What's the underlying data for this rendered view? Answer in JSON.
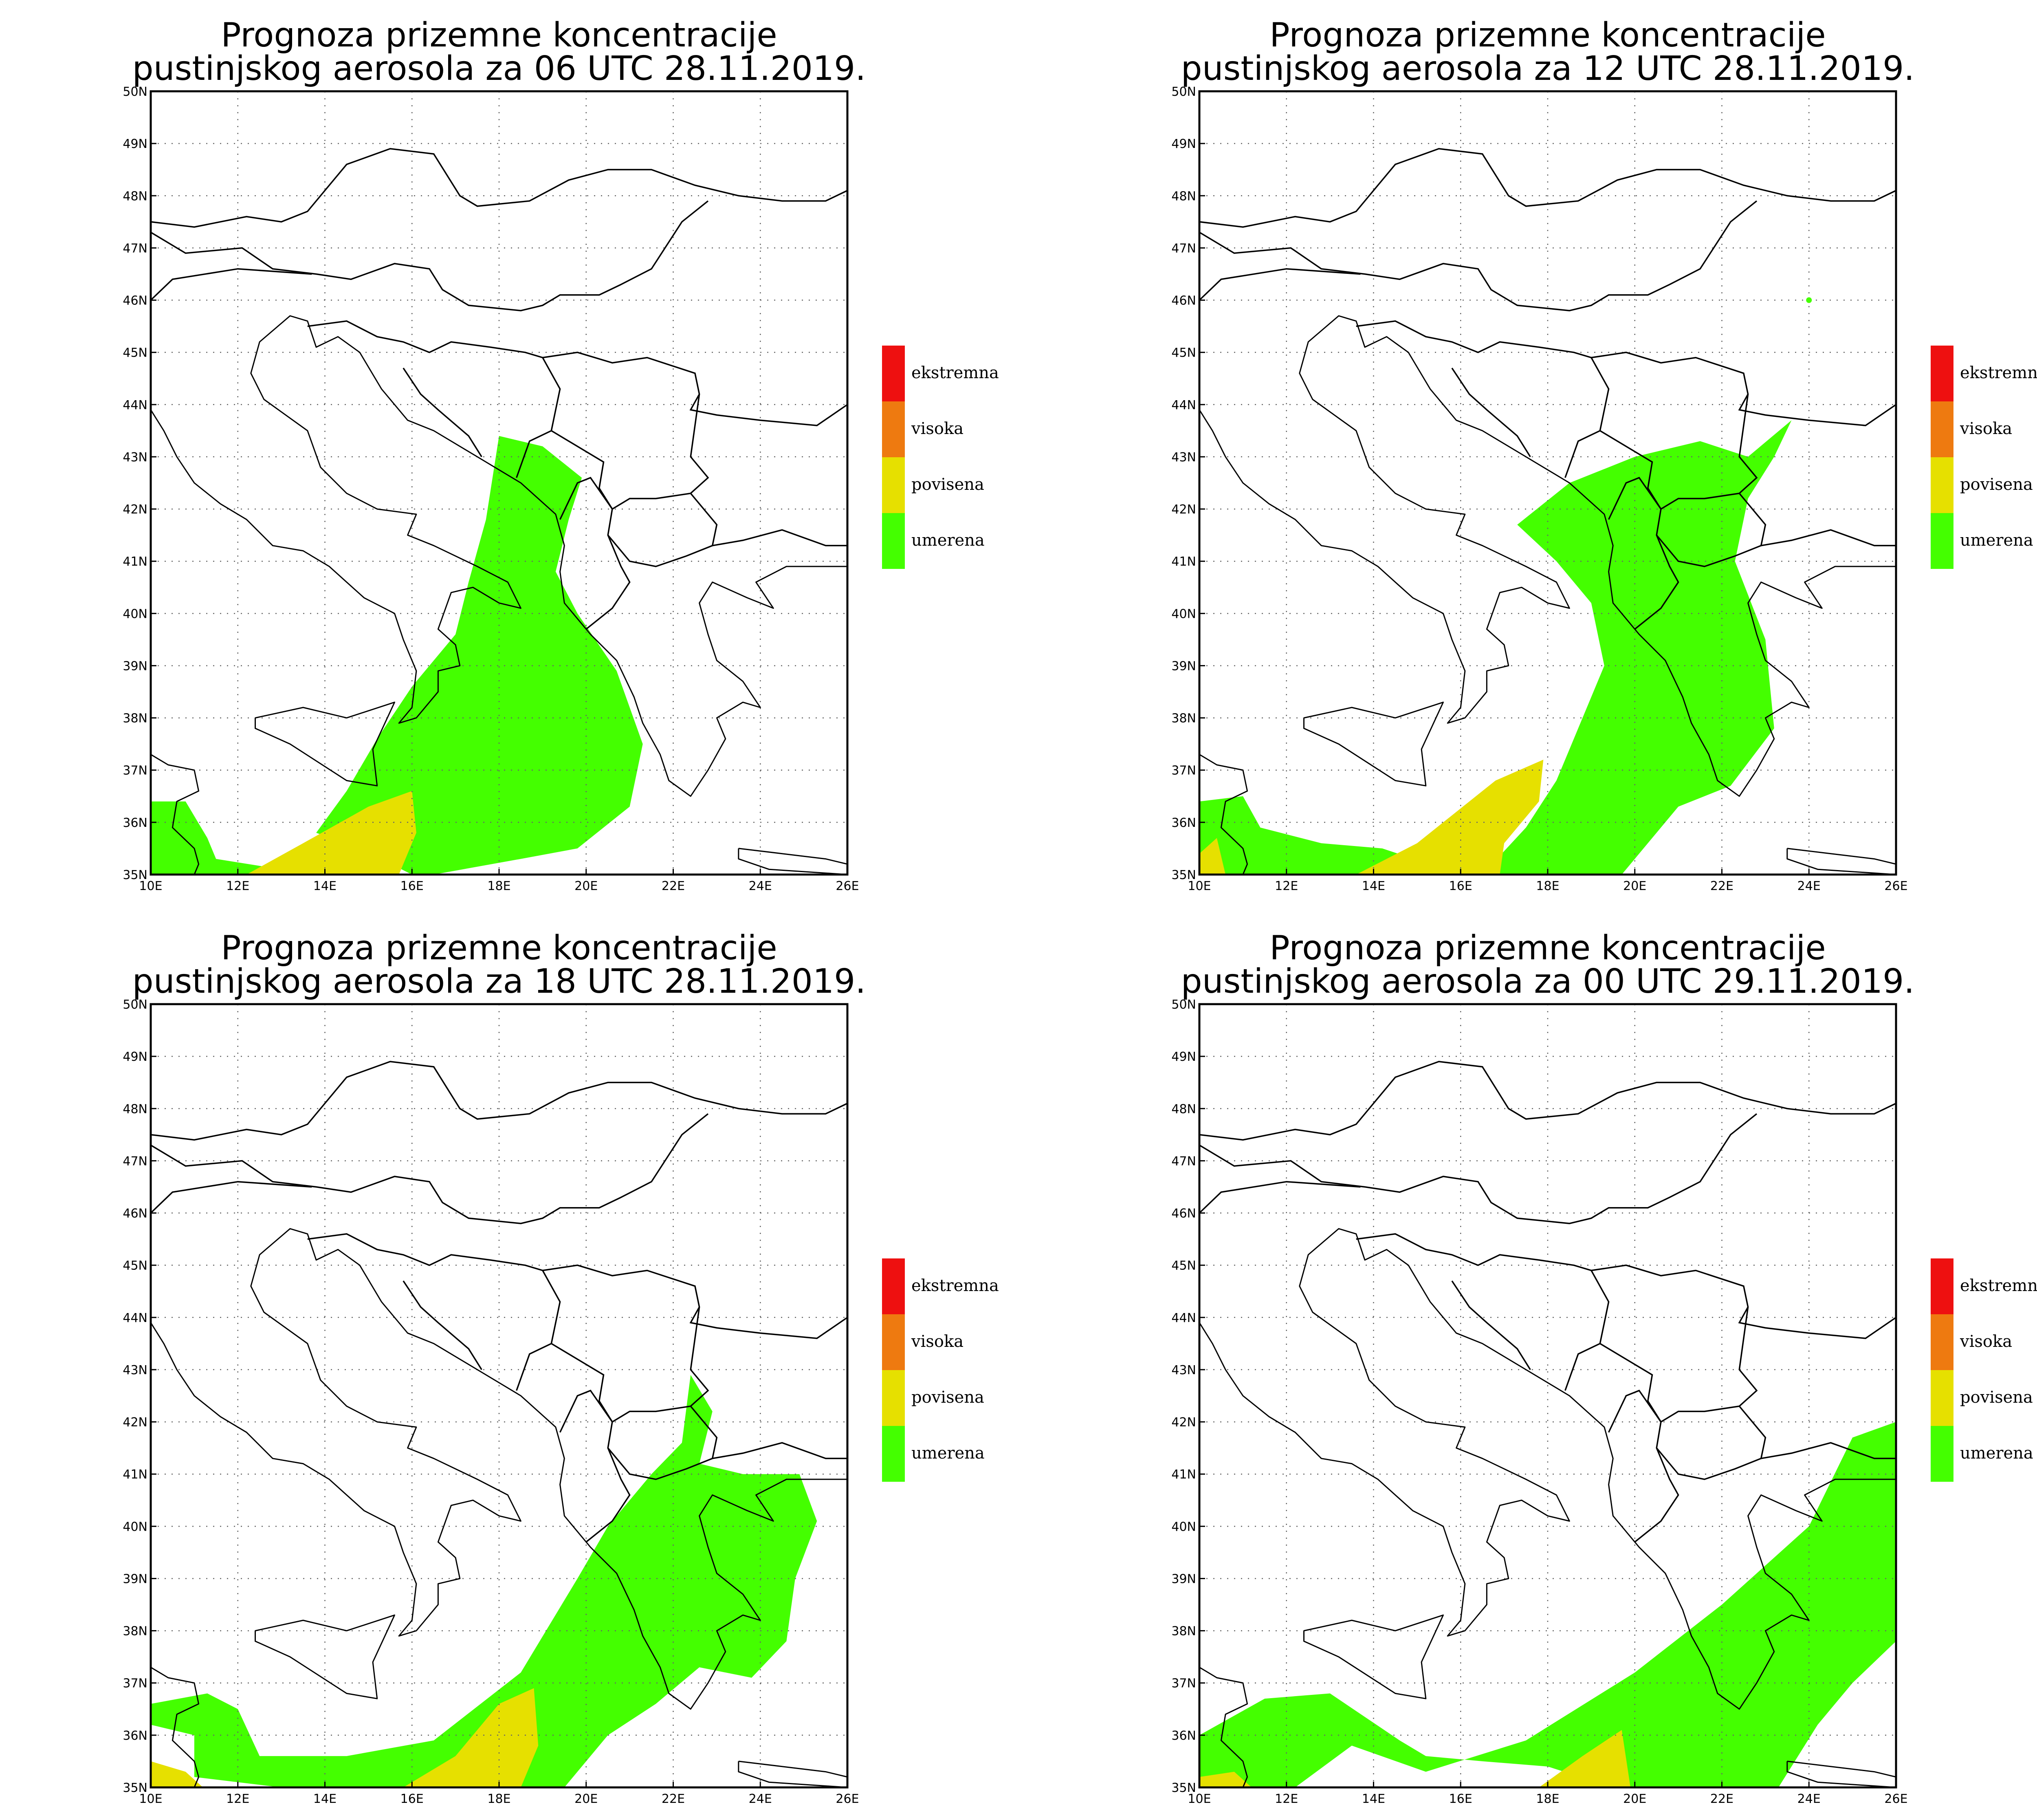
{
  "colors": {
    "ekstremna": "#ee1010",
    "visoka": "#ee7a10",
    "povisena": "#e6e000",
    "umerena": "#44ff00"
  },
  "axes": {
    "lon_labels": [
      "10E",
      "12E",
      "14E",
      "16E",
      "18E",
      "20E",
      "22E",
      "24E",
      "26E"
    ],
    "lat_labels": [
      "35N",
      "36N",
      "37N",
      "38N",
      "39N",
      "40N",
      "41N",
      "42N",
      "43N",
      "44N",
      "45N",
      "46N",
      "47N",
      "48N",
      "49N",
      "50N"
    ],
    "lon_range": [
      10,
      26
    ],
    "lat_range": [
      35,
      50
    ]
  },
  "legend": [
    {
      "key": "ekstremna",
      "label": "ekstremna"
    },
    {
      "key": "visoka",
      "label": "visoka"
    },
    {
      "key": "povisena",
      "label": "povisena"
    },
    {
      "key": "umerena",
      "label": "umerena"
    }
  ],
  "panels": [
    {
      "title_line1": "Prognoza prizemne koncentracije",
      "title_line2": "pustinjskog aerosola za 06 UTC 28.11.2019."
    },
    {
      "title_line1": "Prognoza prizemne koncentracije",
      "title_line2": "pustinjskog aerosola za 12 UTC 28.11.2019."
    },
    {
      "title_line1": "Prognoza prizemne koncentracije",
      "title_line2": "pustinjskog aerosola za 18 UTC 28.11.2019."
    },
    {
      "title_line1": "Prognoza prizemne koncentracije",
      "title_line2": "pustinjskog aerosola za 00 UTC 29.11.2019."
    }
  ],
  "map_shapes": {
    "umerena": [
      [
        [
          18,
          43.4
        ],
        [
          19,
          43.2
        ],
        [
          19.9,
          42.6
        ],
        [
          19.6,
          41.8
        ],
        [
          19.3,
          40.8
        ],
        [
          19.8,
          40.0
        ],
        [
          20.7,
          38.9
        ],
        [
          21.3,
          37.5
        ],
        [
          21.0,
          36.3
        ],
        [
          19.8,
          35.5
        ],
        [
          18.5,
          35.3
        ],
        [
          16.5,
          35.0
        ],
        [
          15.0,
          35.0
        ],
        [
          13.0,
          35.1
        ],
        [
          11.5,
          35.3
        ],
        [
          11.3,
          35.7
        ],
        [
          10.8,
          36.4
        ],
        [
          10.0,
          36.4
        ],
        [
          10.0,
          35.0
        ],
        [
          16.0,
          35.0
        ],
        [
          14.8,
          35.5
        ],
        [
          13.8,
          35.8
        ],
        [
          14.5,
          36.6
        ],
        [
          15.2,
          37.6
        ],
        [
          16.0,
          38.6
        ],
        [
          17.0,
          39.6
        ],
        [
          17.3,
          40.6
        ],
        [
          17.7,
          41.8
        ]
      ],
      [
        [
          17.3,
          41.7
        ],
        [
          18.5,
          42.5
        ],
        [
          20.0,
          43.0
        ],
        [
          21.5,
          43.3
        ],
        [
          22.6,
          43.0
        ],
        [
          23.6,
          43.7
        ],
        [
          23.2,
          43.0
        ],
        [
          22.6,
          42.2
        ],
        [
          22.3,
          41.0
        ],
        [
          23.0,
          39.5
        ],
        [
          23.2,
          37.8
        ],
        [
          22.2,
          36.7
        ],
        [
          21.0,
          36.3
        ],
        [
          19.7,
          35.0
        ],
        [
          16.0,
          35.0
        ],
        [
          14.2,
          35.5
        ],
        [
          12.8,
          35.6
        ],
        [
          11.4,
          35.9
        ],
        [
          11.0,
          36.5
        ],
        [
          10.0,
          36.4
        ],
        [
          10.0,
          35.0
        ],
        [
          16.5,
          35.0
        ],
        [
          17.5,
          35.9
        ],
        [
          18.2,
          36.8
        ],
        [
          18.8,
          38.0
        ],
        [
          19.3,
          39.0
        ],
        [
          19.0,
          40.2
        ],
        [
          18.2,
          41.0
        ]
      ],
      [
        [
          22.4,
          42.9
        ],
        [
          22.9,
          42.2
        ],
        [
          22.6,
          41.2
        ],
        [
          23.6,
          41.0
        ],
        [
          24.9,
          41.0
        ],
        [
          25.3,
          40.1
        ],
        [
          24.8,
          39.0
        ],
        [
          24.6,
          37.8
        ],
        [
          23.8,
          37.1
        ],
        [
          22.6,
          37.3
        ],
        [
          21.6,
          36.6
        ],
        [
          20.5,
          36.0
        ],
        [
          19.5,
          35.0
        ],
        [
          13.0,
          35.0
        ],
        [
          11.0,
          35.2
        ],
        [
          11.0,
          36.0
        ],
        [
          10.0,
          36.2
        ],
        [
          10.0,
          36.6
        ],
        [
          11.3,
          36.8
        ],
        [
          12.0,
          36.5
        ],
        [
          12.5,
          35.6
        ],
        [
          14.5,
          35.6
        ],
        [
          16.5,
          35.9
        ],
        [
          18.5,
          37.2
        ],
        [
          19.8,
          39.0
        ],
        [
          20.5,
          40.0
        ],
        [
          21.5,
          41.0
        ],
        [
          22.2,
          41.6
        ]
      ],
      [
        [
          26.0,
          42.0
        ],
        [
          26.0,
          37.8
        ],
        [
          25.0,
          37.0
        ],
        [
          24.2,
          36.2
        ],
        [
          23.3,
          35.0
        ],
        [
          19.5,
          35.0
        ],
        [
          18.0,
          35.4
        ],
        [
          16.5,
          35.5
        ],
        [
          15.2,
          35.6
        ],
        [
          14.6,
          35.9
        ],
        [
          13.0,
          36.8
        ],
        [
          11.5,
          36.7
        ],
        [
          10.0,
          36.0
        ],
        [
          10.0,
          35.0
        ],
        [
          12.2,
          35.0
        ],
        [
          13.5,
          35.8
        ],
        [
          15.2,
          35.3
        ],
        [
          17.5,
          35.9
        ],
        [
          20.0,
          37.2
        ],
        [
          22.0,
          38.5
        ],
        [
          24.0,
          40.0
        ],
        [
          25.0,
          41.7
        ]
      ]
    ],
    "povisena": [
      [
        [
          12.2,
          35.0
        ],
        [
          13.5,
          35.6
        ],
        [
          15.0,
          36.3
        ],
        [
          16.0,
          36.6
        ],
        [
          16.1,
          35.8
        ],
        [
          15.7,
          35.0
        ]
      ],
      [
        [
          13.6,
          35.0
        ],
        [
          15.0,
          35.6
        ],
        [
          16.8,
          36.8
        ],
        [
          17.9,
          37.2
        ],
        [
          17.8,
          36.4
        ],
        [
          17.0,
          35.6
        ],
        [
          16.9,
          35.0
        ]
      ],
      [
        [
          10.0,
          35.0
        ],
        [
          10.0,
          35.5
        ],
        [
          10.8,
          35.3
        ],
        [
          11.2,
          35.0
        ]
      ],
      [
        [
          10.0,
          35.0
        ],
        [
          10.0,
          35.2
        ],
        [
          10.8,
          35.3
        ],
        [
          11.2,
          35.0
        ]
      ]
    ],
    "povisena_extra": [
      [],
      [
        [
          10.0,
          35.0
        ],
        [
          10.0,
          35.4
        ],
        [
          10.4,
          35.7
        ],
        [
          10.6,
          35.0
        ]
      ],
      [
        [
          15.8,
          35.0
        ],
        [
          17.0,
          35.6
        ],
        [
          18.0,
          36.6
        ],
        [
          18.8,
          36.9
        ],
        [
          18.9,
          35.8
        ],
        [
          18.5,
          35.0
        ]
      ],
      [
        [
          17.8,
          35.0
        ],
        [
          18.8,
          35.6
        ],
        [
          19.7,
          36.1
        ],
        [
          19.9,
          35.0
        ]
      ]
    ],
    "coastline": [
      [
        [
          10.0,
          43.9
        ],
        [
          10.3,
          43.5
        ],
        [
          10.6,
          43.0
        ],
        [
          11.0,
          42.5
        ],
        [
          11.6,
          42.1
        ],
        [
          12.2,
          41.8
        ],
        [
          12.8,
          41.3
        ],
        [
          13.5,
          41.2
        ],
        [
          14.1,
          40.9
        ],
        [
          14.5,
          40.6
        ],
        [
          14.9,
          40.3
        ],
        [
          15.6,
          40.0
        ],
        [
          15.8,
          39.5
        ],
        [
          16.1,
          38.9
        ],
        [
          16.0,
          38.2
        ],
        [
          15.7,
          37.9
        ],
        [
          16.1,
          38.0
        ],
        [
          16.6,
          38.5
        ],
        [
          16.6,
          38.9
        ],
        [
          17.1,
          39.0
        ],
        [
          17.0,
          39.4
        ],
        [
          16.6,
          39.7
        ],
        [
          16.9,
          40.4
        ],
        [
          17.4,
          40.5
        ],
        [
          18.0,
          40.2
        ],
        [
          18.5,
          40.1
        ],
        [
          18.2,
          40.6
        ],
        [
          17.5,
          40.9
        ],
        [
          16.5,
          41.3
        ],
        [
          15.9,
          41.5
        ],
        [
          16.1,
          41.9
        ],
        [
          15.2,
          42.0
        ],
        [
          14.5,
          42.3
        ],
        [
          13.9,
          42.8
        ],
        [
          13.6,
          43.5
        ],
        [
          12.6,
          44.1
        ],
        [
          12.3,
          44.6
        ],
        [
          12.5,
          45.2
        ],
        [
          13.2,
          45.7
        ],
        [
          13.6,
          45.6
        ],
        [
          13.8,
          45.1
        ],
        [
          14.3,
          45.3
        ],
        [
          14.8,
          45.0
        ],
        [
          15.3,
          44.3
        ],
        [
          15.9,
          43.7
        ],
        [
          16.5,
          43.5
        ],
        [
          17.5,
          43.0
        ],
        [
          18.5,
          42.5
        ],
        [
          19.3,
          41.9
        ],
        [
          19.5,
          41.3
        ],
        [
          19.4,
          40.8
        ],
        [
          19.5,
          40.2
        ],
        [
          20.1,
          39.6
        ],
        [
          20.7,
          39.1
        ],
        [
          21.1,
          38.4
        ],
        [
          21.3,
          37.9
        ],
        [
          21.7,
          37.3
        ],
        [
          21.9,
          36.8
        ],
        [
          22.4,
          36.5
        ],
        [
          22.8,
          37.0
        ],
        [
          23.2,
          37.6
        ],
        [
          23.0,
          38.0
        ],
        [
          23.6,
          38.3
        ],
        [
          24.0,
          38.2
        ],
        [
          23.6,
          38.7
        ],
        [
          23.0,
          39.1
        ],
        [
          22.8,
          39.6
        ],
        [
          22.6,
          40.2
        ],
        [
          22.9,
          40.6
        ],
        [
          23.7,
          40.3
        ],
        [
          24.3,
          40.1
        ],
        [
          23.9,
          40.6
        ],
        [
          24.6,
          40.9
        ],
        [
          25.6,
          40.9
        ],
        [
          26.0,
          40.9
        ]
      ],
      [
        [
          12.4,
          38.0
        ],
        [
          13.5,
          38.2
        ],
        [
          14.5,
          38.0
        ],
        [
          15.6,
          38.3
        ],
        [
          15.1,
          37.4
        ],
        [
          15.2,
          36.7
        ],
        [
          14.5,
          36.8
        ],
        [
          13.2,
          37.5
        ],
        [
          12.4,
          37.8
        ],
        [
          12.4,
          38.0
        ]
      ],
      [
        [
          23.5,
          35.5
        ],
        [
          24.5,
          35.4
        ],
        [
          25.5,
          35.3
        ],
        [
          26.0,
          35.2
        ],
        [
          26.0,
          35.0
        ],
        [
          24.2,
          35.1
        ],
        [
          23.5,
          35.3
        ],
        [
          23.5,
          35.5
        ]
      ],
      [
        [
          10.0,
          37.3
        ],
        [
          10.4,
          37.1
        ],
        [
          11.0,
          37.0
        ],
        [
          11.1,
          36.6
        ],
        [
          10.6,
          36.4
        ],
        [
          10.5,
          35.9
        ],
        [
          11.0,
          35.5
        ],
        [
          11.1,
          35.2
        ],
        [
          11.0,
          35.0
        ]
      ]
    ],
    "borders": [
      [
        [
          10.0,
          47.5
        ],
        [
          11.0,
          47.4
        ],
        [
          12.2,
          47.6
        ],
        [
          13.0,
          47.5
        ],
        [
          13.6,
          47.7
        ],
        [
          14.5,
          48.6
        ],
        [
          15.5,
          48.9
        ],
        [
          16.5,
          48.8
        ],
        [
          17.1,
          48.0
        ],
        [
          17.5,
          47.8
        ],
        [
          18.7,
          47.9
        ],
        [
          19.6,
          48.3
        ],
        [
          20.5,
          48.5
        ],
        [
          21.5,
          48.5
        ],
        [
          22.5,
          48.2
        ],
        [
          23.5,
          48.0
        ],
        [
          24.5,
          47.9
        ],
        [
          25.5,
          47.9
        ],
        [
          26.0,
          48.1
        ]
      ],
      [
        [
          10.0,
          47.3
        ],
        [
          10.8,
          46.9
        ],
        [
          12.1,
          47.0
        ],
        [
          12.8,
          46.6
        ],
        [
          13.8,
          46.5
        ],
        [
          14.6,
          46.4
        ],
        [
          15.6,
          46.7
        ],
        [
          16.4,
          46.6
        ],
        [
          16.7,
          46.2
        ],
        [
          17.3,
          45.9
        ],
        [
          18.5,
          45.8
        ],
        [
          19.0,
          45.9
        ],
        [
          19.4,
          46.1
        ],
        [
          20.3,
          46.1
        ],
        [
          20.8,
          46.3
        ],
        [
          21.5,
          46.6
        ],
        [
          22.2,
          47.5
        ],
        [
          22.8,
          47.9
        ]
      ],
      [
        [
          13.6,
          45.5
        ],
        [
          14.5,
          45.6
        ],
        [
          15.2,
          45.3
        ],
        [
          15.8,
          45.2
        ],
        [
          16.4,
          45.0
        ],
        [
          16.9,
          45.2
        ],
        [
          17.8,
          45.1
        ],
        [
          18.6,
          45.0
        ],
        [
          19.0,
          44.9
        ],
        [
          19.4,
          44.3
        ],
        [
          19.2,
          43.5
        ],
        [
          18.7,
          43.3
        ],
        [
          18.4,
          42.6
        ]
      ],
      [
        [
          15.8,
          44.7
        ],
        [
          16.2,
          44.2
        ],
        [
          16.6,
          43.9
        ],
        [
          17.3,
          43.4
        ],
        [
          17.6,
          43.0
        ]
      ],
      [
        [
          19.0,
          44.9
        ],
        [
          19.8,
          45.0
        ],
        [
          20.6,
          44.8
        ],
        [
          21.4,
          44.9
        ],
        [
          22.5,
          44.6
        ],
        [
          22.6,
          44.2
        ],
        [
          22.4,
          43.9
        ],
        [
          23.0,
          43.8
        ],
        [
          24.0,
          43.7
        ],
        [
          25.3,
          43.6
        ],
        [
          26.0,
          44.0
        ]
      ],
      [
        [
          19.2,
          43.5
        ],
        [
          20.0,
          43.1
        ],
        [
          20.4,
          42.9
        ],
        [
          20.3,
          42.4
        ],
        [
          20.6,
          42.0
        ],
        [
          21.0,
          42.2
        ],
        [
          21.6,
          42.2
        ],
        [
          22.4,
          42.3
        ],
        [
          22.8,
          42.6
        ],
        [
          22.4,
          43.0
        ],
        [
          22.6,
          44.2
        ]
      ],
      [
        [
          19.4,
          41.8
        ],
        [
          19.8,
          42.5
        ],
        [
          20.1,
          42.6
        ],
        [
          20.6,
          42.0
        ],
        [
          20.5,
          41.5
        ],
        [
          20.8,
          40.9
        ],
        [
          21.0,
          40.6
        ],
        [
          20.6,
          40.1
        ],
        [
          20.0,
          39.7
        ]
      ],
      [
        [
          20.5,
          41.5
        ],
        [
          21.0,
          41.0
        ],
        [
          21.6,
          40.9
        ],
        [
          22.3,
          41.1
        ],
        [
          22.9,
          41.3
        ],
        [
          23.0,
          41.7
        ],
        [
          22.4,
          42.3
        ]
      ],
      [
        [
          22.9,
          41.3
        ],
        [
          23.6,
          41.4
        ],
        [
          24.5,
          41.6
        ],
        [
          25.5,
          41.3
        ],
        [
          26.0,
          41.3
        ]
      ],
      [
        [
          10.0,
          46.0
        ],
        [
          10.5,
          46.4
        ],
        [
          12.0,
          46.6
        ],
        [
          13.7,
          46.5
        ]
      ]
    ]
  }
}
